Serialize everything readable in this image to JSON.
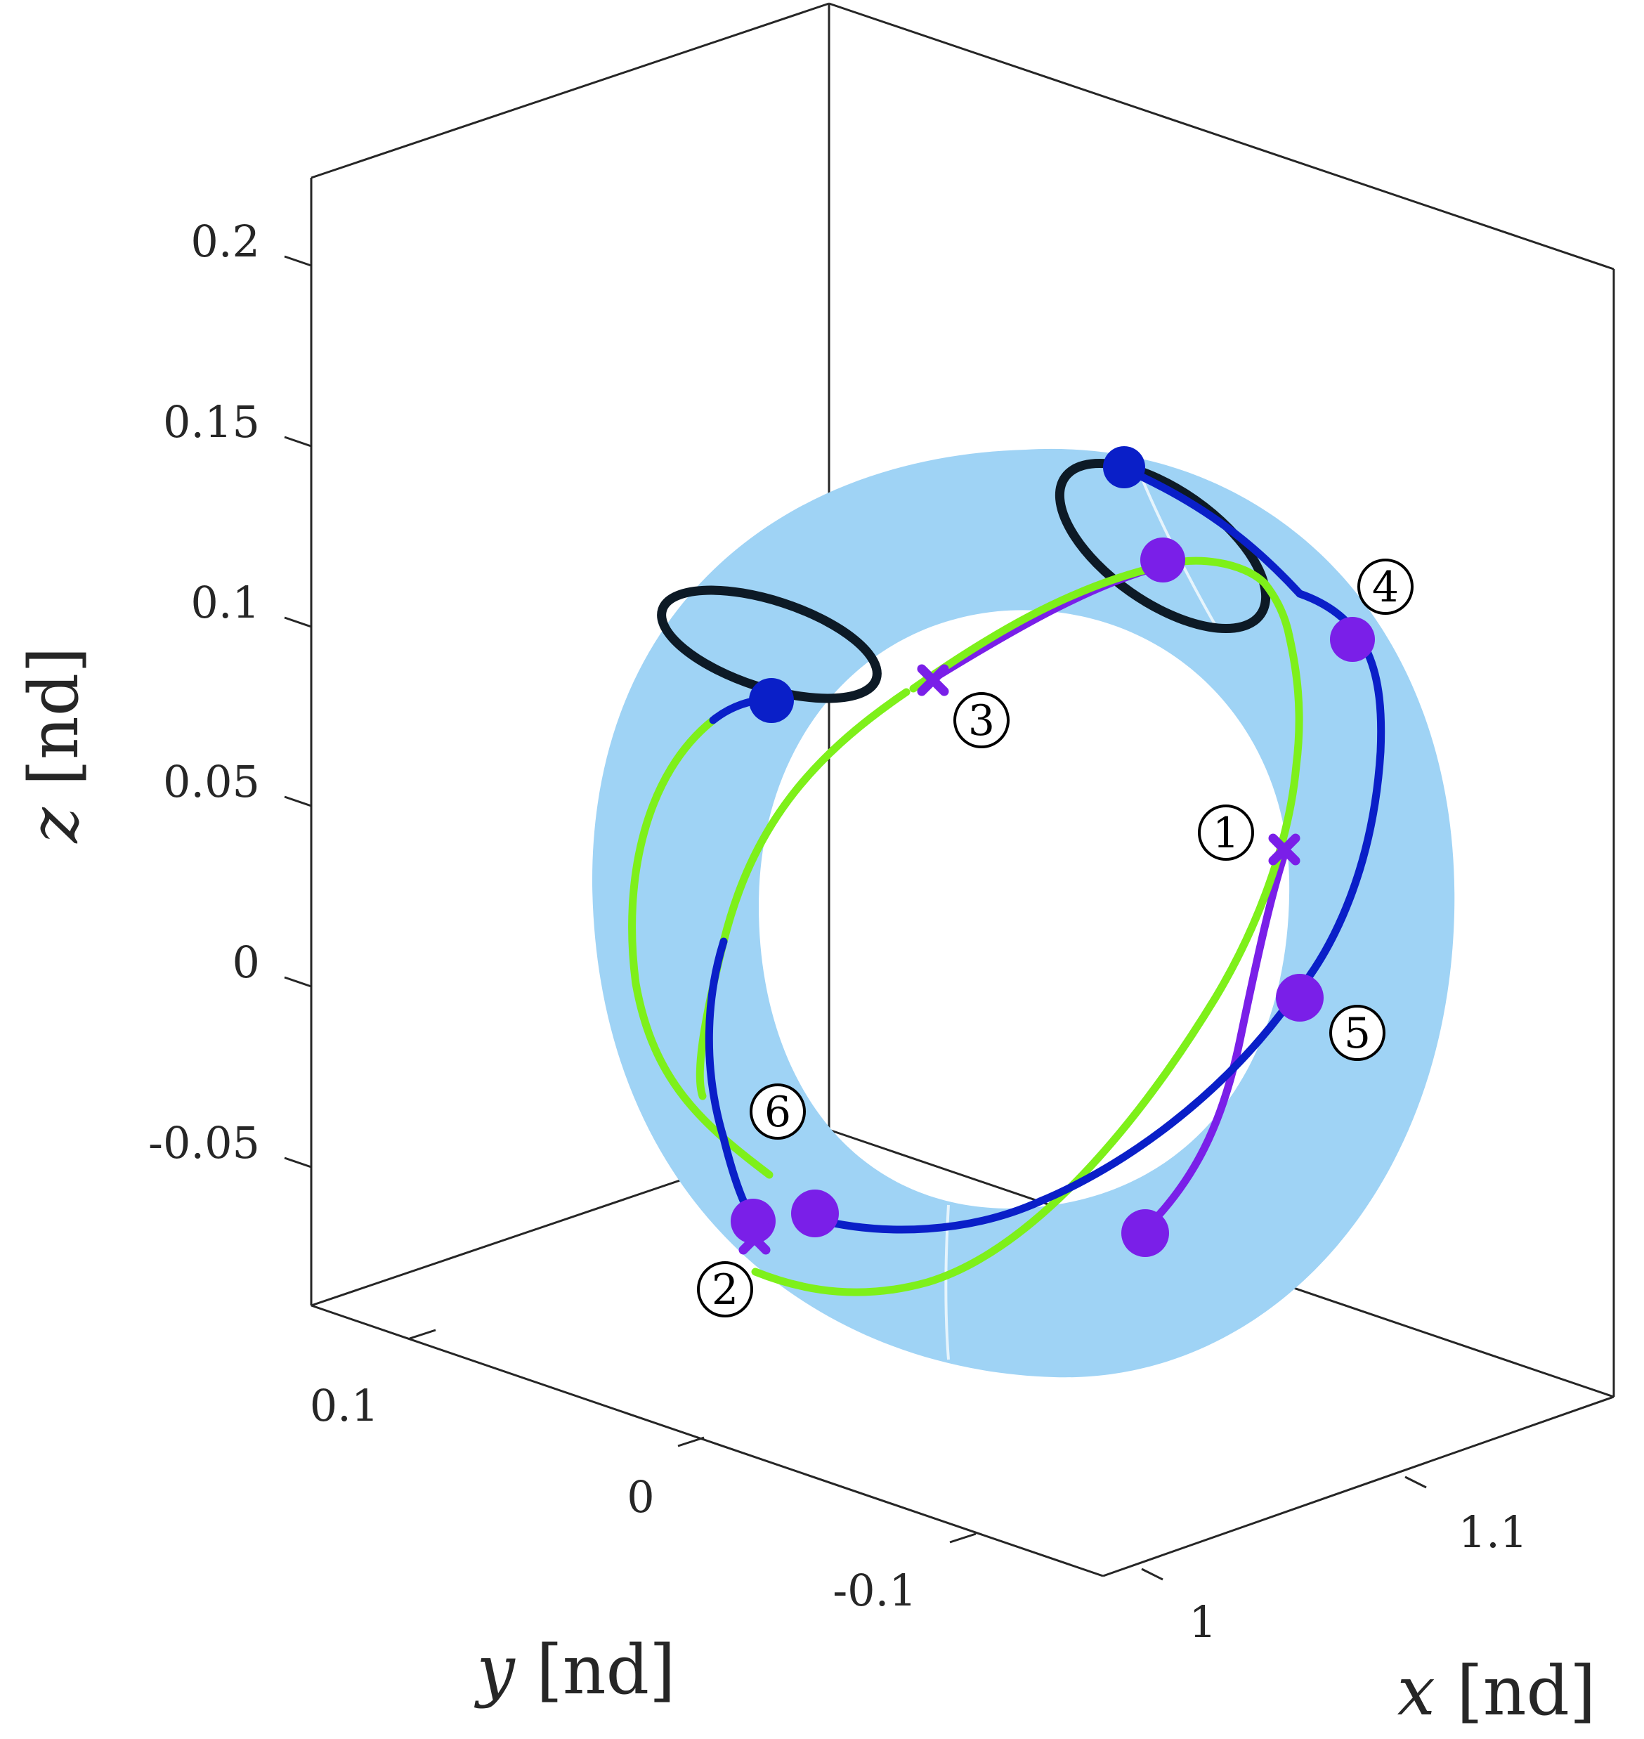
{
  "chart_data": {
    "type": "line3d",
    "xlabel": {
      "var": "x",
      "unit": "[nd]"
    },
    "ylabel": {
      "var": "y",
      "unit": "[nd]"
    },
    "zlabel": {
      "var": "z",
      "unit": "[nd]"
    },
    "x_ticks": [
      "1",
      "1.1"
    ],
    "y_ticks": [
      "0.1",
      "0",
      "-0.1"
    ],
    "z_ticks": [
      "0.2",
      "0.15",
      "0.1",
      "0.05",
      "0",
      "-0.05"
    ],
    "colors": {
      "torus_surface": "#9fd3f5",
      "blue_arc": "#0a1fc8",
      "green_arc": "#7ef01a",
      "purple_arc": "#7a1fe8",
      "purple_marker": "#7a1fe8",
      "blue_marker": "#0a1fc8",
      "black_orbit": "#0d1a26"
    },
    "event_labels": [
      "1",
      "2",
      "3",
      "4",
      "5",
      "6"
    ]
  }
}
